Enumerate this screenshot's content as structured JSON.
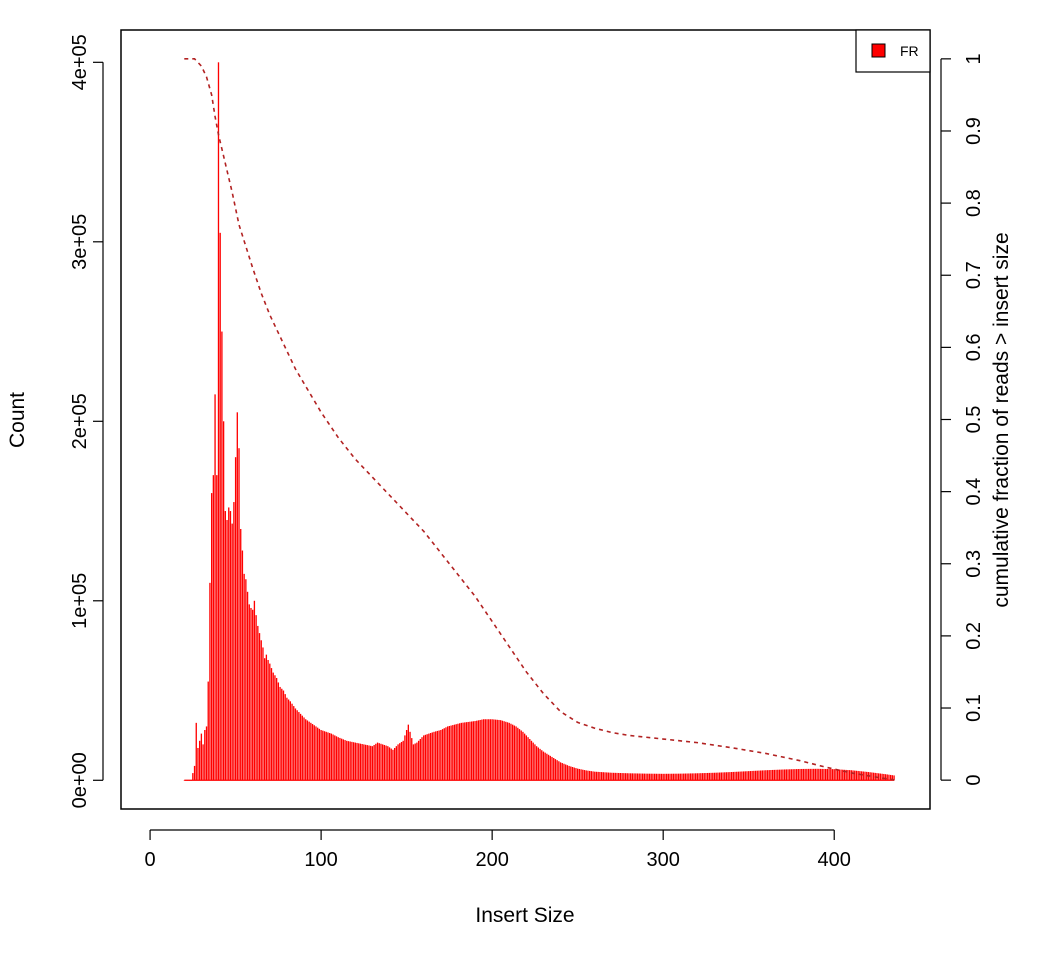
{
  "chart_data": {
    "type": "bar",
    "title": "",
    "xlabel": "Insert Size",
    "ylabel": "Count",
    "y2label": "cumulative fraction of reads > insert size",
    "xlim": [
      -17,
      456
    ],
    "ylim": [
      -16000,
      418000
    ],
    "y2lim": [
      -0.04,
      1.04
    ],
    "x_ticks": [
      0,
      100,
      200,
      300,
      400
    ],
    "y_ticks": [
      0,
      100000,
      200000,
      300000,
      400000
    ],
    "y_tick_labels": [
      "0e+00",
      "1e+05",
      "2e+05",
      "3e+05",
      "4e+05"
    ],
    "y2_ticks": [
      0,
      0.1,
      0.2,
      0.3,
      0.4,
      0.5,
      0.6,
      0.7,
      0.8,
      0.9,
      1
    ],
    "y2_tick_labels": [
      "0",
      "0.1",
      "0.2",
      "0.3",
      "0.4",
      "0.5",
      "0.6",
      "0.7",
      "0.8",
      "0.9",
      "1"
    ],
    "grid": false,
    "legend": {
      "position": "top-right",
      "entries": [
        {
          "label": "FR",
          "color": "#ff0000"
        }
      ]
    },
    "bar_color": "#ff0000",
    "line_color": "#b22222",
    "histogram": {
      "name": "FR",
      "points": [
        [
          20,
          0
        ],
        [
          22,
          0
        ],
        [
          24,
          0
        ],
        [
          26,
          8000
        ],
        [
          27,
          32000
        ],
        [
          28,
          18000
        ],
        [
          29,
          22000
        ],
        [
          30,
          26000
        ],
        [
          31,
          20000
        ],
        [
          32,
          28000
        ],
        [
          33,
          30000
        ],
        [
          34,
          55000
        ],
        [
          35,
          110000
        ],
        [
          36,
          160000
        ],
        [
          37,
          170000
        ],
        [
          38,
          215000
        ],
        [
          39,
          170000
        ],
        [
          40,
          400000
        ],
        [
          41,
          305000
        ],
        [
          42,
          250000
        ],
        [
          43,
          200000
        ],
        [
          44,
          150000
        ],
        [
          45,
          145000
        ],
        [
          46,
          152000
        ],
        [
          47,
          150000
        ],
        [
          48,
          143000
        ],
        [
          49,
          155000
        ],
        [
          50,
          180000
        ],
        [
          51,
          205000
        ],
        [
          52,
          185000
        ],
        [
          53,
          140000
        ],
        [
          54,
          128000
        ],
        [
          55,
          115000
        ],
        [
          56,
          112000
        ],
        [
          57,
          105000
        ],
        [
          58,
          98000
        ],
        [
          59,
          96000
        ],
        [
          60,
          95000
        ],
        [
          61,
          100000
        ],
        [
          62,
          92000
        ],
        [
          63,
          86000
        ],
        [
          64,
          82000
        ],
        [
          65,
          78000
        ],
        [
          66,
          74000
        ],
        [
          67,
          68000
        ],
        [
          68,
          70000
        ],
        [
          69,
          67000
        ],
        [
          70,
          65000
        ],
        [
          72,
          60000
        ],
        [
          74,
          57000
        ],
        [
          76,
          52000
        ],
        [
          78,
          50000
        ],
        [
          80,
          46000
        ],
        [
          82,
          44000
        ],
        [
          85,
          40000
        ],
        [
          88,
          37000
        ],
        [
          91,
          34000
        ],
        [
          94,
          32000
        ],
        [
          97,
          30000
        ],
        [
          100,
          28000
        ],
        [
          103,
          27000
        ],
        [
          106,
          26000
        ],
        [
          110,
          24000
        ],
        [
          115,
          22000
        ],
        [
          120,
          21000
        ],
        [
          125,
          20000
        ],
        [
          130,
          19000
        ],
        [
          133,
          21000
        ],
        [
          136,
          20000
        ],
        [
          139,
          19000
        ],
        [
          142,
          17000
        ],
        [
          145,
          20000
        ],
        [
          148,
          22000
        ],
        [
          150,
          28000
        ],
        [
          151,
          31000
        ],
        [
          152,
          27000
        ],
        [
          154,
          20000
        ],
        [
          156,
          21000
        ],
        [
          158,
          23000
        ],
        [
          160,
          25000
        ],
        [
          163,
          26000
        ],
        [
          166,
          27000
        ],
        [
          170,
          28000
        ],
        [
          174,
          30000
        ],
        [
          178,
          31000
        ],
        [
          182,
          32000
        ],
        [
          186,
          32500
        ],
        [
          190,
          33000
        ],
        [
          195,
          34000
        ],
        [
          200,
          34000
        ],
        [
          205,
          33500
        ],
        [
          210,
          32000
        ],
        [
          214,
          30000
        ],
        [
          218,
          27000
        ],
        [
          222,
          23000
        ],
        [
          226,
          19000
        ],
        [
          230,
          16000
        ],
        [
          235,
          13000
        ],
        [
          240,
          10000
        ],
        [
          245,
          8000
        ],
        [
          250,
          6500
        ],
        [
          255,
          5500
        ],
        [
          260,
          4800
        ],
        [
          270,
          4200
        ],
        [
          280,
          3900
        ],
        [
          290,
          3700
        ],
        [
          300,
          3600
        ],
        [
          310,
          3700
        ],
        [
          320,
          3900
        ],
        [
          330,
          4200
        ],
        [
          340,
          4600
        ],
        [
          350,
          5100
        ],
        [
          360,
          5600
        ],
        [
          370,
          6000
        ],
        [
          380,
          6300
        ],
        [
          390,
          6400
        ],
        [
          400,
          6200
        ],
        [
          410,
          5600
        ],
        [
          420,
          4600
        ],
        [
          430,
          3400
        ],
        [
          435,
          2700
        ]
      ]
    },
    "cumulative": {
      "points": [
        [
          20,
          1.0
        ],
        [
          26,
          1.0
        ],
        [
          30,
          0.99
        ],
        [
          33,
          0.975
        ],
        [
          36,
          0.95
        ],
        [
          38,
          0.92
        ],
        [
          40,
          0.895
        ],
        [
          44,
          0.855
        ],
        [
          48,
          0.815
        ],
        [
          52,
          0.77
        ],
        [
          56,
          0.74
        ],
        [
          60,
          0.71
        ],
        [
          65,
          0.675
        ],
        [
          70,
          0.645
        ],
        [
          75,
          0.62
        ],
        [
          80,
          0.595
        ],
        [
          85,
          0.57
        ],
        [
          90,
          0.55
        ],
        [
          95,
          0.53
        ],
        [
          100,
          0.51
        ],
        [
          110,
          0.475
        ],
        [
          120,
          0.445
        ],
        [
          130,
          0.42
        ],
        [
          140,
          0.395
        ],
        [
          150,
          0.37
        ],
        [
          160,
          0.345
        ],
        [
          170,
          0.315
        ],
        [
          180,
          0.285
        ],
        [
          190,
          0.255
        ],
        [
          200,
          0.22
        ],
        [
          210,
          0.185
        ],
        [
          220,
          0.15
        ],
        [
          230,
          0.12
        ],
        [
          240,
          0.095
        ],
        [
          250,
          0.08
        ],
        [
          260,
          0.072
        ],
        [
          270,
          0.066
        ],
        [
          280,
          0.062
        ],
        [
          300,
          0.057
        ],
        [
          320,
          0.052
        ],
        [
          340,
          0.045
        ],
        [
          360,
          0.037
        ],
        [
          380,
          0.027
        ],
        [
          395,
          0.018
        ],
        [
          410,
          0.01
        ],
        [
          425,
          0.004
        ],
        [
          436,
          0.0
        ]
      ]
    }
  }
}
